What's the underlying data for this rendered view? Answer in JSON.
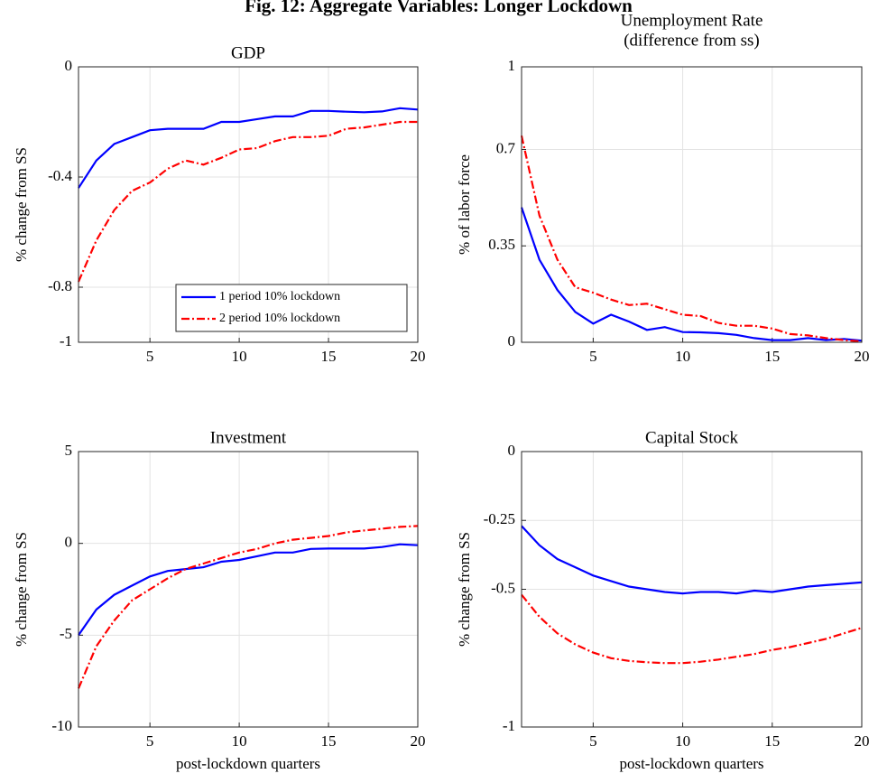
{
  "title": "Fig. 12: Aggregate Variables: Longer Lockdown",
  "chart_data": [
    {
      "type": "line",
      "title": "GDP",
      "ylabel": "% change from SS",
      "x": [
        1,
        2,
        3,
        4,
        5,
        6,
        7,
        8,
        9,
        10,
        11,
        12,
        13,
        14,
        15,
        16,
        17,
        18,
        19,
        20
      ],
      "xlim": [
        1,
        20
      ],
      "xticks": [
        5,
        10,
        15,
        20
      ],
      "ylim": [
        -1,
        0
      ],
      "yticks": [
        -1,
        -0.8,
        -0.4,
        0
      ],
      "grid": true,
      "legend": "lower right",
      "series": [
        {
          "name": "1 period 10% lockdown",
          "color": "#0000ff",
          "linestyle": "solid",
          "values": [
            -0.44,
            -0.34,
            -0.28,
            -0.255,
            -0.23,
            -0.225,
            -0.225,
            -0.225,
            -0.2,
            -0.2,
            -0.19,
            -0.18,
            -0.18,
            -0.16,
            -0.16,
            -0.163,
            -0.165,
            -0.162,
            -0.15,
            -0.155
          ]
        },
        {
          "name": "2 period 10% lockdown",
          "color": "#ff0000",
          "linestyle": "dash-dot",
          "values": [
            -0.78,
            -0.63,
            -0.52,
            -0.45,
            -0.42,
            -0.37,
            -0.34,
            -0.355,
            -0.33,
            -0.3,
            -0.295,
            -0.27,
            -0.255,
            -0.255,
            -0.25,
            -0.225,
            -0.22,
            -0.21,
            -0.2,
            -0.2
          ]
        }
      ]
    },
    {
      "type": "line",
      "title": "Unemployment Rate",
      "subtitle": "(difference from ss)",
      "ylabel": "% of labor force",
      "x": [
        1,
        2,
        3,
        4,
        5,
        6,
        7,
        8,
        9,
        10,
        11,
        12,
        13,
        14,
        15,
        16,
        17,
        18,
        19,
        20
      ],
      "xlim": [
        1,
        20
      ],
      "xticks": [
        5,
        10,
        15,
        20
      ],
      "ylim": [
        0,
        1
      ],
      "yticks": [
        0,
        0.35,
        0.7,
        1
      ],
      "grid": true,
      "series": [
        {
          "color": "#0000ff",
          "linestyle": "solid",
          "values": [
            0.49,
            0.3,
            0.19,
            0.11,
            0.068,
            0.1,
            0.075,
            0.045,
            0.055,
            0.037,
            0.036,
            0.033,
            0.027,
            0.015,
            0.008,
            0.008,
            0.015,
            0.008,
            0.012,
            0.006
          ]
        },
        {
          "color": "#ff0000",
          "linestyle": "dash-dot",
          "values": [
            0.75,
            0.46,
            0.3,
            0.2,
            0.18,
            0.155,
            0.135,
            0.14,
            0.12,
            0.1,
            0.095,
            0.07,
            0.06,
            0.06,
            0.05,
            0.03,
            0.025,
            0.015,
            0.008,
            0.003
          ]
        }
      ]
    },
    {
      "type": "line",
      "title": "Investment",
      "ylabel": "% change from SS",
      "xlabel": "post-lockdown quarters",
      "x": [
        1,
        2,
        3,
        4,
        5,
        6,
        7,
        8,
        9,
        10,
        11,
        12,
        13,
        14,
        15,
        16,
        17,
        18,
        19,
        20
      ],
      "xlim": [
        1,
        20
      ],
      "xticks": [
        5,
        10,
        15,
        20
      ],
      "ylim": [
        -10,
        5
      ],
      "yticks": [
        -10,
        -5,
        0,
        5
      ],
      "grid": true,
      "series": [
        {
          "color": "#0000ff",
          "linestyle": "solid",
          "values": [
            -5,
            -3.6,
            -2.8,
            -2.3,
            -1.8,
            -1.5,
            -1.4,
            -1.3,
            -1,
            -0.9,
            -0.7,
            -0.5,
            -0.5,
            -0.3,
            -0.28,
            -0.28,
            -0.28,
            -0.2,
            -0.05,
            -0.1
          ]
        },
        {
          "color": "#ff0000",
          "linestyle": "dash-dot",
          "values": [
            -7.9,
            -5.6,
            -4.2,
            -3.1,
            -2.5,
            -1.9,
            -1.4,
            -1.1,
            -0.8,
            -0.5,
            -0.3,
            0,
            0.2,
            0.3,
            0.4,
            0.6,
            0.7,
            0.8,
            0.9,
            0.95
          ]
        }
      ]
    },
    {
      "type": "line",
      "title": "Capital Stock",
      "ylabel": "% change from SS",
      "xlabel": "post-lockdown quarters",
      "x": [
        1,
        2,
        3,
        4,
        5,
        6,
        7,
        8,
        9,
        10,
        11,
        12,
        13,
        14,
        15,
        16,
        17,
        18,
        19,
        20
      ],
      "xlim": [
        1,
        20
      ],
      "xticks": [
        5,
        10,
        15,
        20
      ],
      "ylim": [
        -1,
        0
      ],
      "yticks": [
        -1,
        -0.5,
        -0.25,
        0
      ],
      "grid": true,
      "series": [
        {
          "color": "#0000ff",
          "linestyle": "solid",
          "values": [
            -0.27,
            -0.34,
            -0.39,
            -0.42,
            -0.45,
            -0.47,
            -0.49,
            -0.5,
            -0.51,
            -0.515,
            -0.51,
            -0.51,
            -0.515,
            -0.505,
            -0.51,
            -0.5,
            -0.49,
            -0.485,
            -0.48,
            -0.475
          ]
        },
        {
          "color": "#ff0000",
          "linestyle": "dash-dot",
          "values": [
            -0.52,
            -0.6,
            -0.66,
            -0.7,
            -0.73,
            -0.75,
            -0.76,
            -0.765,
            -0.768,
            -0.768,
            -0.763,
            -0.755,
            -0.745,
            -0.735,
            -0.72,
            -0.71,
            -0.695,
            -0.68,
            -0.66,
            -0.64
          ]
        }
      ]
    }
  ]
}
